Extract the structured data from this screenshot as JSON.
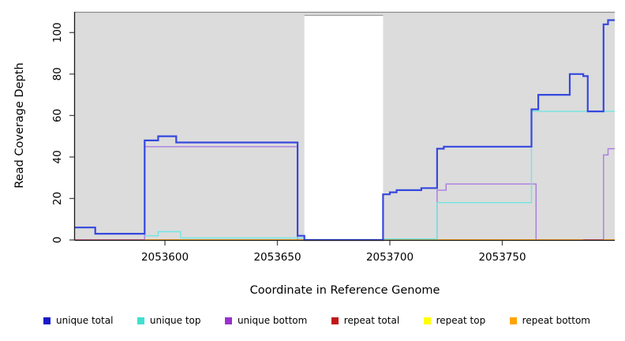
{
  "chart_data": {
    "type": "line",
    "subtype": "step-coverage",
    "title": "",
    "xlabel": "Coordinate in Reference Genome",
    "ylabel": "Read Coverage Depth",
    "xlim": [
      2053560,
      2053800
    ],
    "ylim": [
      0,
      110
    ],
    "x_ticks": [
      "2053600",
      "2053650",
      "2053700",
      "2053750"
    ],
    "x_tick_values": [
      2053600,
      2053650,
      2053700,
      2053750
    ],
    "y_ticks": [
      "0",
      "20",
      "40",
      "60",
      "80",
      "100"
    ],
    "y_tick_values": [
      0,
      20,
      40,
      60,
      80,
      100
    ],
    "grid": false,
    "plot_background": "#DCDCDC",
    "masked_region": {
      "x_start": 2053662,
      "x_end": 2053697,
      "color": "#FFFFFF",
      "border": "#9E9E9E"
    },
    "series": [
      {
        "name": "repeat top",
        "color": "#FFFF00",
        "width": 1.4,
        "segments": [
          [
            [
              2053560,
              0
            ],
            [
              2053800,
              0
            ]
          ]
        ]
      },
      {
        "name": "unique bottom",
        "color": "#A97BE0",
        "width": 1.4,
        "segments": [
          [
            [
              2053560,
              0
            ],
            [
              2053591,
              45
            ],
            [
              2053659,
              0
            ],
            [
              2053721,
              24
            ],
            [
              2053725,
              27
            ],
            [
              2053765,
              0
            ],
            [
              2053795,
              41
            ],
            [
              2053797,
              44
            ],
            [
              2053800,
              44
            ]
          ]
        ]
      },
      {
        "name": "repeat bottom",
        "color": "#FFA126",
        "width": 1.7,
        "segments": [
          [
            [
              2053591,
              0
            ],
            [
              2053800,
              0
            ]
          ]
        ]
      },
      {
        "name": "repeat total",
        "color": "#CC4B7A",
        "width": 1.6,
        "segments": [
          [
            [
              2053560,
              0
            ],
            [
              2053591,
              0
            ]
          ],
          [
            [
              2053786,
              0
            ],
            [
              2053795,
              0
            ]
          ]
        ]
      },
      {
        "name": "unique top",
        "color": "#6FE6E2",
        "width": 1.4,
        "segments": [
          [
            [
              2053591,
              2
            ],
            [
              2053597,
              4
            ],
            [
              2053607,
              1
            ],
            [
              2053662,
              1
            ]
          ],
          [
            [
              2053697,
              0.5
            ],
            [
              2053721,
              18
            ],
            [
              2053763,
              62
            ],
            [
              2053800,
              62
            ]
          ]
        ]
      },
      {
        "name": "unique total",
        "color": "#3648DE",
        "width": 2.2,
        "segments": [
          [
            [
              2053560,
              6
            ],
            [
              2053569,
              3
            ],
            [
              2053591,
              48
            ],
            [
              2053597,
              50
            ],
            [
              2053605,
              47
            ],
            [
              2053659,
              2
            ],
            [
              2053662,
              0
            ],
            [
              2053697,
              22
            ],
            [
              2053700,
              23
            ],
            [
              2053703,
              24
            ],
            [
              2053714,
              25
            ],
            [
              2053721,
              44
            ],
            [
              2053724,
              45
            ],
            [
              2053763,
              63
            ],
            [
              2053766,
              70
            ],
            [
              2053780,
              80
            ],
            [
              2053786,
              79
            ],
            [
              2053788,
              62
            ],
            [
              2053795,
              104
            ],
            [
              2053797,
              106
            ],
            [
              2053800,
              106
            ]
          ]
        ]
      }
    ],
    "legend_position": "bottom"
  },
  "legend": {
    "items": [
      {
        "label": "unique total",
        "color": "#1A1AC8"
      },
      {
        "label": "unique top",
        "color": "#40E0D0"
      },
      {
        "label": "unique bottom",
        "color": "#9932CC"
      },
      {
        "label": "repeat total",
        "color": "#C01818"
      },
      {
        "label": "repeat top",
        "color": "#FFFF00"
      },
      {
        "label": "repeat bottom",
        "color": "#FFA500"
      }
    ]
  }
}
